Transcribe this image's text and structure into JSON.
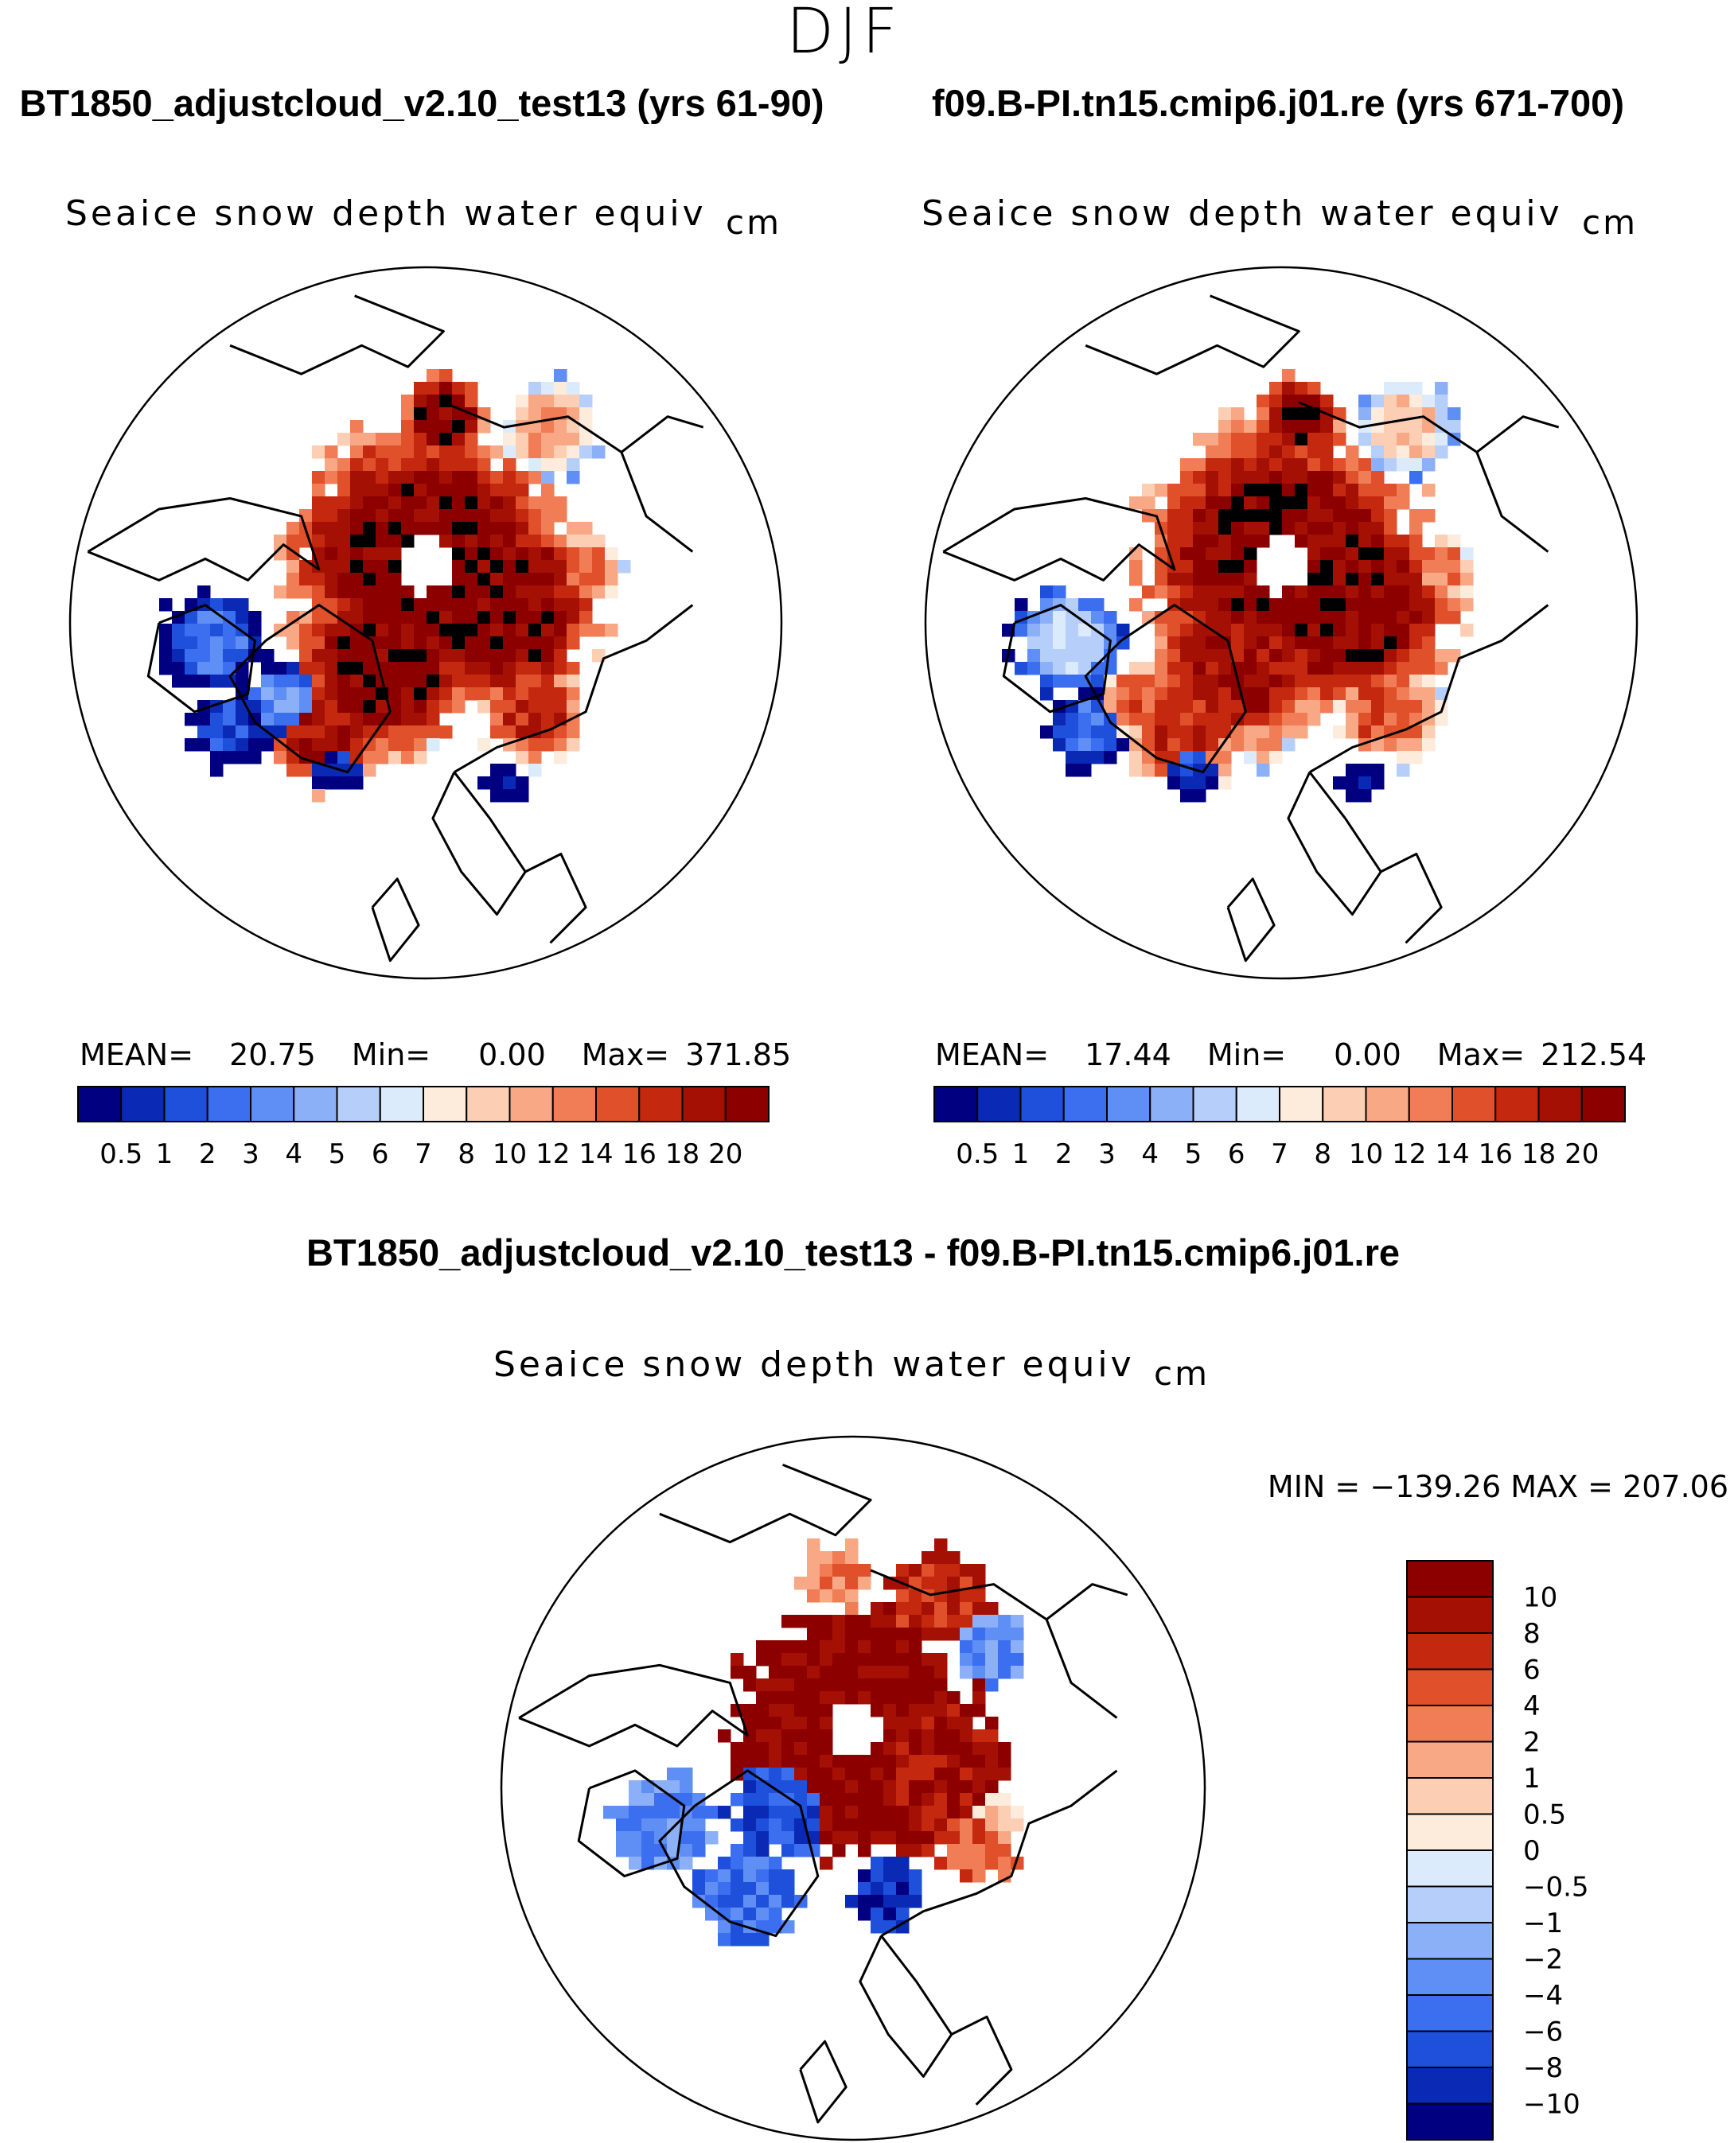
{
  "figure": {
    "season": "DJF",
    "diff_title": "BT1850_adjustcloud_v2.10_test13 - f09.B-PI.tn15.cmip6.j01.re"
  },
  "panels": [
    {
      "case_title": "BT1850_adjustcloud_v2.10_test13 (yrs 61-90)",
      "variable": "Seaice snow depth water equiv",
      "units": "cm",
      "stats": {
        "mean_label": "MEAN=",
        "mean": "20.75",
        "min_label": "Min=",
        "min": "0.00",
        "max_label": "Max=",
        "max": "371.85"
      },
      "map_type": "absolute"
    },
    {
      "case_title": "f09.B-PI.tn15.cmip6.j01.re (yrs 671-700)",
      "variable": "Seaice snow depth water equiv",
      "units": "cm",
      "stats": {
        "mean_label": "MEAN=",
        "mean": "17.44",
        "min_label": "Min=",
        "min": "0.00",
        "max_label": "Max=",
        "max": "212.54"
      },
      "map_type": "absolute"
    },
    {
      "variable": "Seaice snow depth water equiv",
      "units": "cm",
      "stats": {
        "text": "MIN = −139.26 MAX = 207.06"
      },
      "map_type": "difference"
    }
  ],
  "chart_data": [
    {
      "type": "heatmap",
      "projection": "north polar stereographic",
      "title": "BT1850_adjustcloud_v2.10_test13 (yrs 61-90)",
      "variable": "Seaice snow depth water equiv",
      "units": "cm",
      "mean": 20.75,
      "min": 0.0,
      "max": 371.85,
      "colorbar": {
        "orientation": "horizontal",
        "levels": [
          0.5,
          1,
          2,
          3,
          4,
          5,
          6,
          7,
          8,
          10,
          12,
          14,
          16,
          18,
          20
        ],
        "labels": [
          "0.5",
          "1",
          "2",
          "3",
          "4",
          "5",
          "6",
          "7",
          "8",
          "10",
          "12",
          "14",
          "16",
          "18",
          "20"
        ],
        "colors": [
          "#000080",
          "#0a2ab5",
          "#1e50dc",
          "#3c6ef0",
          "#5f8ff5",
          "#8cb0f8",
          "#b6cffa",
          "#dcebfb",
          "#fdebdc",
          "#fccfb4",
          "#f8a884",
          "#f07d55",
          "#e0502b",
          "#c4280f",
          "#a51005",
          "#8c0000"
        ]
      }
    },
    {
      "type": "heatmap",
      "projection": "north polar stereographic",
      "title": "f09.B-PI.tn15.cmip6.j01.re (yrs 671-700)",
      "variable": "Seaice snow depth water equiv",
      "units": "cm",
      "mean": 17.44,
      "min": 0.0,
      "max": 212.54,
      "colorbar": {
        "orientation": "horizontal",
        "levels": [
          0.5,
          1,
          2,
          3,
          4,
          5,
          6,
          7,
          8,
          10,
          12,
          14,
          16,
          18,
          20
        ],
        "labels": [
          "0.5",
          "1",
          "2",
          "3",
          "4",
          "5",
          "6",
          "7",
          "8",
          "10",
          "12",
          "14",
          "16",
          "18",
          "20"
        ],
        "colors": [
          "#000080",
          "#0a2ab5",
          "#1e50dc",
          "#3c6ef0",
          "#5f8ff5",
          "#8cb0f8",
          "#b6cffa",
          "#dcebfb",
          "#fdebdc",
          "#fccfb4",
          "#f8a884",
          "#f07d55",
          "#e0502b",
          "#c4280f",
          "#a51005",
          "#8c0000"
        ]
      }
    },
    {
      "type": "heatmap",
      "projection": "north polar stereographic",
      "title": "BT1850_adjustcloud_v2.10_test13 - f09.B-PI.tn15.cmip6.j01.re",
      "variable": "Seaice snow depth water equiv",
      "units": "cm",
      "min": -139.26,
      "max": 207.06,
      "colorbar": {
        "orientation": "vertical",
        "levels": [
          10,
          8,
          6,
          4,
          2,
          1,
          0.5,
          0,
          -0.5,
          -1,
          -2,
          -4,
          -6,
          -8,
          -10
        ],
        "labels": [
          "10",
          "8",
          "6",
          "4",
          "2",
          "1",
          "0.5",
          "0",
          "−0.5",
          "−1",
          "−2",
          "−4",
          "−6",
          "−8",
          "−10"
        ],
        "colors": [
          "#8c0000",
          "#a51005",
          "#c4280f",
          "#e0502b",
          "#f07d55",
          "#f8a884",
          "#fccfb4",
          "#fdebdc",
          "#dcebfb",
          "#b6cffa",
          "#8cb0f8",
          "#5f8ff5",
          "#3c6ef0",
          "#1e50dc",
          "#0a2ab5",
          "#000080"
        ]
      }
    }
  ]
}
